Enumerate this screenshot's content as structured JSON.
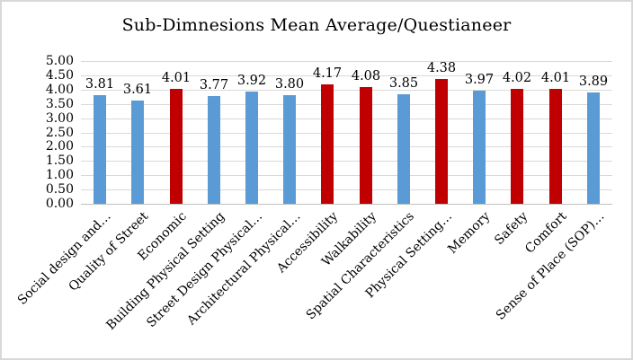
{
  "colors": {
    "blue": "#5B9BD5",
    "red": "#C00000",
    "gridline": "#D9D9D9",
    "axis_line": "#BFBFBF",
    "frame_border": "#D8D8D8",
    "text": "#000000"
  },
  "chart_data": {
    "type": "bar",
    "title": "Sub-Dimnesions Mean Average/Questianeer",
    "categories": [
      "Social design and…",
      "Quality of Street",
      "Economic",
      "Building Physical Setting",
      "Street Design Physical…",
      "Architectural Physical…",
      "Accessibility",
      "Walkability",
      "Spatial Characteristics",
      "Physical Setting…",
      "Memory",
      "Safety",
      "Comfort",
      "Sense of Place (SOP)…"
    ],
    "values": [
      3.81,
      3.61,
      4.01,
      3.77,
      3.92,
      3.8,
      4.17,
      4.08,
      3.85,
      4.38,
      3.97,
      4.02,
      4.01,
      3.89
    ],
    "data_labels": [
      "3.81",
      "3.61",
      "4.01",
      "3.77",
      "3.92",
      "3.80",
      "4.17",
      "4.08",
      "3.85",
      "4.38",
      "3.97",
      "4.02",
      "4.01",
      "3.89"
    ],
    "bar_colors": [
      "blue",
      "blue",
      "red",
      "blue",
      "blue",
      "blue",
      "red",
      "red",
      "blue",
      "red",
      "blue",
      "red",
      "red",
      "blue"
    ],
    "xlabel": "",
    "ylabel": "",
    "ylim": [
      0,
      5
    ],
    "ytick_step": 0.5,
    "ytick_labels": [
      "0.00",
      "0.50",
      "1.00",
      "1.50",
      "2.00",
      "2.50",
      "3.00",
      "3.50",
      "4.00",
      "4.50",
      "5.00"
    ],
    "grid": true,
    "legend_position": "none",
    "x_label_rotation_deg": 45
  }
}
